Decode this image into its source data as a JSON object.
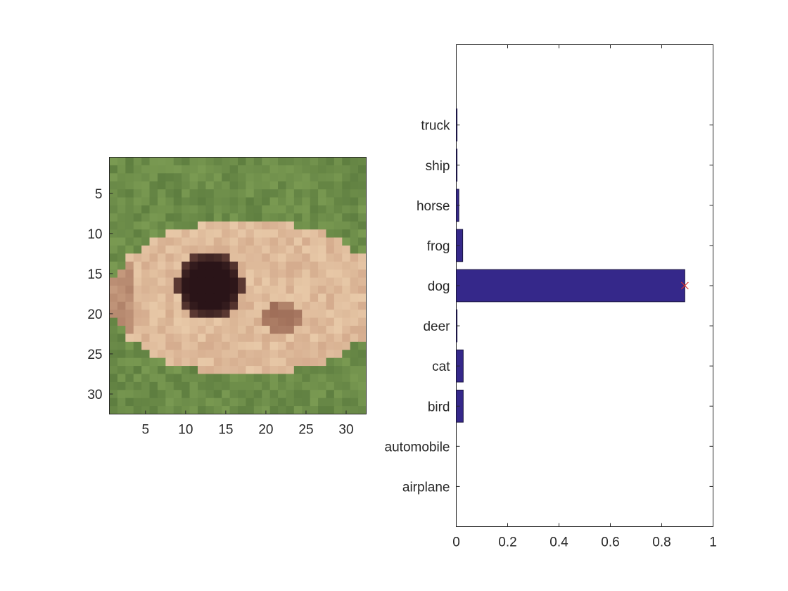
{
  "colors": {
    "bar_fill": "#35288a",
    "bar_edge": "#1a1540",
    "marker": "#d9342b",
    "axis": "#262626",
    "grass_light": "#7a9a52",
    "grass_dark": "#5e7e40",
    "fur_light": "#e8c9a8",
    "fur_mid": "#d2a88a",
    "fur_dark": "#9b6a55",
    "eye_patch": "#2a1418"
  },
  "image_panel": {
    "type": "image",
    "description_icon": "pixelated-dog-thumbnail",
    "x_ticks": [
      "5",
      "10",
      "15",
      "20",
      "25",
      "30"
    ],
    "y_ticks": [
      "5",
      "10",
      "15",
      "20",
      "25",
      "30"
    ],
    "xlim": [
      0.5,
      32.5
    ],
    "ylim": [
      0.5,
      32.5
    ]
  },
  "chart_data": {
    "type": "bar",
    "orientation": "horizontal",
    "categories": [
      "airplane",
      "automobile",
      "bird",
      "cat",
      "deer",
      "dog",
      "frog",
      "horse",
      "ship",
      "truck"
    ],
    "values": [
      0.0,
      0.0,
      0.027,
      0.027,
      0.003,
      0.89,
      0.025,
      0.01,
      0.003,
      0.003
    ],
    "xlim": [
      0,
      1
    ],
    "x_ticks": [
      "0",
      "0.2",
      "0.4",
      "0.6",
      "0.8",
      "1"
    ],
    "x_tick_values": [
      0,
      0.2,
      0.4,
      0.6,
      0.8,
      1
    ],
    "marker": {
      "category": "dog",
      "value": 0.89,
      "symbol": "x"
    },
    "title": "",
    "xlabel": "",
    "ylabel": "",
    "grid": false
  }
}
